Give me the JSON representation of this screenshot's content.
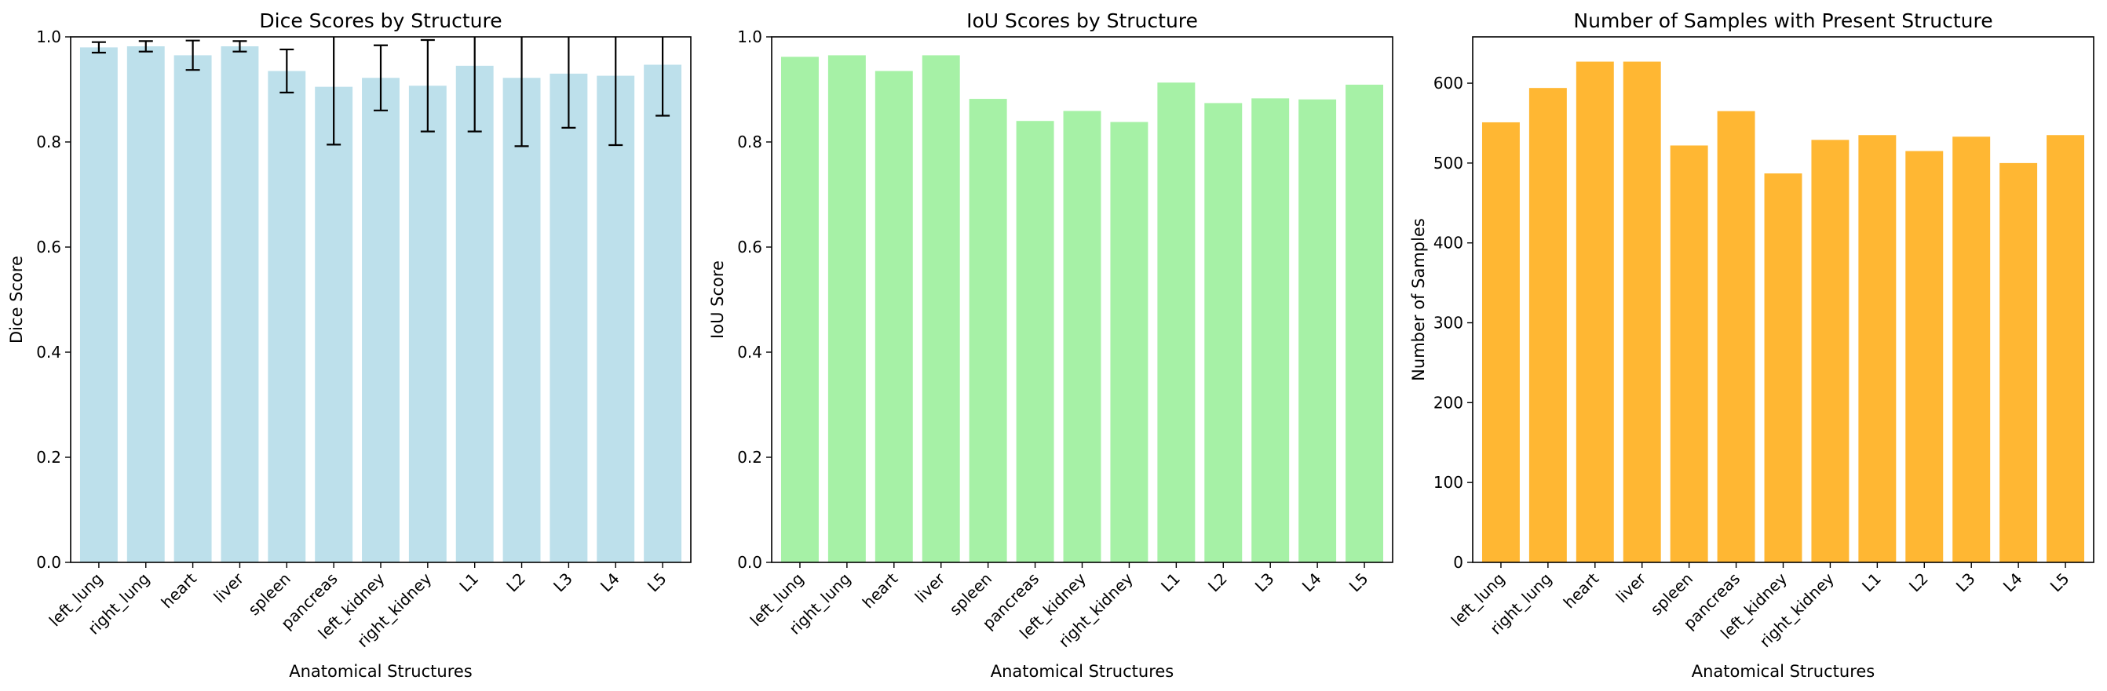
{
  "chart_data": [
    {
      "type": "bar",
      "title": "Dice Scores by Structure",
      "xlabel": "Anatomical Structures",
      "ylabel": "Dice Score",
      "color": "#add8e6",
      "alpha": 0.8,
      "categories": [
        "left_lung",
        "right_lung",
        "heart",
        "liver",
        "spleen",
        "pancreas",
        "left_kidney",
        "right_kidney",
        "L1",
        "L2",
        "L3",
        "L4",
        "L5"
      ],
      "values": [
        0.98,
        0.982,
        0.965,
        0.982,
        0.935,
        0.905,
        0.922,
        0.907,
        0.945,
        0.922,
        0.93,
        0.926,
        0.947
      ],
      "errors": [
        0.01,
        0.01,
        0.028,
        0.01,
        0.041,
        0.11,
        0.062,
        0.087,
        0.125,
        0.13,
        0.103,
        0.132,
        0.097
      ],
      "ylim": [
        0,
        1.0
      ],
      "yticks": [
        0.0,
        0.2,
        0.4,
        0.6,
        0.8,
        1.0
      ],
      "ytick_labels": [
        "0.0",
        "0.2",
        "0.4",
        "0.6",
        "0.8",
        "1.0"
      ],
      "grid": false
    },
    {
      "type": "bar",
      "title": "IoU Scores by Structure",
      "xlabel": "Anatomical Structures",
      "ylabel": "IoU Score",
      "color": "#90ee90",
      "alpha": 0.8,
      "categories": [
        "left_lung",
        "right_lung",
        "heart",
        "liver",
        "spleen",
        "pancreas",
        "left_kidney",
        "right_kidney",
        "L1",
        "L2",
        "L3",
        "L4",
        "L5"
      ],
      "values": [
        0.962,
        0.965,
        0.935,
        0.965,
        0.882,
        0.84,
        0.859,
        0.838,
        0.913,
        0.874,
        0.883,
        0.881,
        0.909
      ],
      "ylim": [
        0,
        1.0
      ],
      "yticks": [
        0.0,
        0.2,
        0.4,
        0.6,
        0.8,
        1.0
      ],
      "ytick_labels": [
        "0.0",
        "0.2",
        "0.4",
        "0.6",
        "0.8",
        "1.0"
      ],
      "grid": false
    },
    {
      "type": "bar",
      "title": "Number of Samples with Present Structure",
      "xlabel": "Anatomical Structures",
      "ylabel": "Number of Samples",
      "color": "#ffa500",
      "alpha": 0.8,
      "categories": [
        "left_lung",
        "right_lung",
        "heart",
        "liver",
        "spleen",
        "pancreas",
        "left_kidney",
        "right_kidney",
        "L1",
        "L2",
        "L3",
        "L4",
        "L5"
      ],
      "values": [
        551,
        594,
        627,
        627,
        522,
        565,
        487,
        529,
        535,
        515,
        533,
        500,
        535
      ],
      "ylim": [
        0,
        658
      ],
      "yticks": [
        0,
        100,
        200,
        300,
        400,
        500,
        600
      ],
      "ytick_labels": [
        "0",
        "100",
        "200",
        "300",
        "400",
        "500",
        "600"
      ],
      "grid": false
    }
  ]
}
